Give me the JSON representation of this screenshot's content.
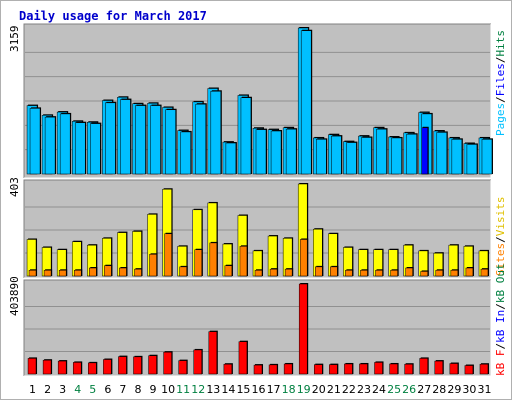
{
  "title": "Daily usage for March 2017",
  "panels": {
    "top": {
      "max_label": "3159",
      "ylim": [
        0,
        3159
      ]
    },
    "middle": {
      "max_label": "403",
      "ylim": [
        0,
        403
      ]
    },
    "bottom": {
      "max_label": "403890",
      "ylim": [
        0,
        403890
      ]
    }
  },
  "right_labels": {
    "pages": "Pages",
    "files": "Files",
    "hits": "Hits",
    "visits": "Visits",
    "sites": "Sites",
    "kb_out": "kB Out",
    "kb_in": "kB In",
    "kb_f": "kB F",
    "sep": "/"
  },
  "colors": {
    "hits": "#00c0ff",
    "files": "#0000ff",
    "pages": "#00c0ff",
    "visits": "#ffff00",
    "sites": "#ff8000",
    "kbytes": "#ff0000",
    "title": "#0000cc",
    "weekday_label": "#000000",
    "weekend_label": "#008040",
    "plot_bg": "#c0c0c0"
  },
  "chart_data": {
    "type": "bar",
    "categories": [
      "1",
      "2",
      "3",
      "4",
      "5",
      "6",
      "7",
      "8",
      "9",
      "10",
      "11",
      "12",
      "13",
      "14",
      "15",
      "16",
      "17",
      "18",
      "19",
      "20",
      "21",
      "22",
      "23",
      "24",
      "25",
      "26",
      "27",
      "28",
      "29",
      "30",
      "31"
    ],
    "weekend_days": [
      "4",
      "5",
      "11",
      "12",
      "18",
      "19",
      "25",
      "26"
    ],
    "series": [
      {
        "name": "Hits",
        "panel": "top",
        "values": [
          1480,
          1270,
          1340,
          1140,
          1120,
          1590,
          1660,
          1520,
          1530,
          1440,
          940,
          1560,
          1850,
          690,
          1700,
          990,
          960,
          1000,
          3159,
          780,
          850,
          700,
          820,
          1000,
          800,
          890,
          1330,
          930,
          780,
          660,
          780
        ]
      },
      {
        "name": "Files",
        "panel": "top",
        "values": [
          1420,
          1230,
          1300,
          1110,
          1090,
          1540,
          1610,
          1480,
          1480,
          1390,
          910,
          1510,
          1790,
          670,
          1650,
          960,
          930,
          970,
          3100,
          750,
          820,
          680,
          790,
          970,
          780,
          860,
          1300,
          900,
          750,
          640,
          750
        ]
      },
      {
        "name": "Pages",
        "panel": "top",
        "values": [
          0,
          0,
          0,
          0,
          0,
          0,
          0,
          0,
          0,
          0,
          0,
          0,
          0,
          0,
          0,
          0,
          0,
          0,
          0,
          0,
          0,
          0,
          0,
          0,
          0,
          0,
          1000,
          0,
          0,
          0,
          0
        ]
      },
      {
        "name": "Visits",
        "panel": "middle",
        "values": [
          160,
          125,
          115,
          150,
          135,
          165,
          190,
          195,
          270,
          380,
          130,
          290,
          320,
          140,
          265,
          110,
          175,
          165,
          403,
          205,
          185,
          125,
          115,
          115,
          115,
          135,
          110,
          100,
          135,
          130,
          110
        ]
      },
      {
        "name": "Sites",
        "panel": "middle",
        "values": [
          25,
          25,
          25,
          25,
          35,
          45,
          35,
          30,
          95,
          185,
          40,
          115,
          145,
          45,
          130,
          25,
          30,
          30,
          160,
          40,
          40,
          25,
          25,
          25,
          25,
          35,
          20,
          25,
          25,
          35,
          30
        ]
      },
      {
        "name": "KBytes",
        "panel": "bottom",
        "values": [
          70000,
          62000,
          58000,
          52000,
          50000,
          65000,
          78000,
          77000,
          82000,
          98000,
          60000,
          108000,
          190000,
          44000,
          145000,
          40000,
          41000,
          45000,
          403890,
          42000,
          42000,
          45000,
          45000,
          52000,
          45000,
          44000,
          70000,
          58000,
          47000,
          38000,
          44000
        ]
      }
    ]
  }
}
